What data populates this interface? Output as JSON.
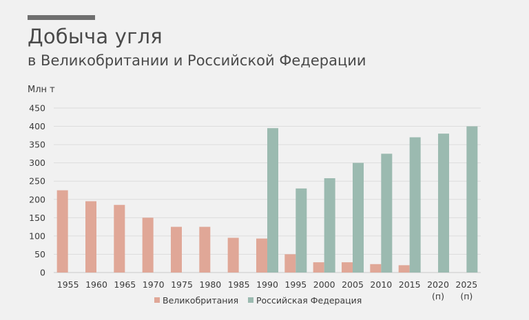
{
  "header": {
    "title": "Добыча угля",
    "subtitle": "в Великобритании и Российской Федерации"
  },
  "chart_data": {
    "type": "bar",
    "ylabel": "Млн т",
    "ylim": [
      0,
      450
    ],
    "yticks": [
      0,
      50,
      100,
      150,
      200,
      250,
      300,
      350,
      400,
      450
    ],
    "categories": [
      "1955",
      "1960",
      "1965",
      "1970",
      "1975",
      "1980",
      "1985",
      "1990",
      "1995",
      "2000",
      "2005",
      "2010",
      "2015",
      "2020",
      "2025"
    ],
    "category_notes": [
      "",
      "",
      "",
      "",
      "",
      "",
      "",
      "",
      "",
      "",
      "",
      "",
      "",
      "(п)",
      "(п)"
    ],
    "series": [
      {
        "name": "Великобритания",
        "color": "#e0a797",
        "values": [
          225,
          195,
          185,
          150,
          125,
          125,
          95,
          93,
          50,
          28,
          28,
          23,
          20,
          null,
          null
        ]
      },
      {
        "name": "Российская Федерация",
        "color": "#9bbab0",
        "values": [
          null,
          null,
          null,
          null,
          null,
          null,
          null,
          395,
          230,
          258,
          300,
          325,
          370,
          380,
          400
        ]
      }
    ],
    "grid": true,
    "legend_position": "bottom-center"
  }
}
